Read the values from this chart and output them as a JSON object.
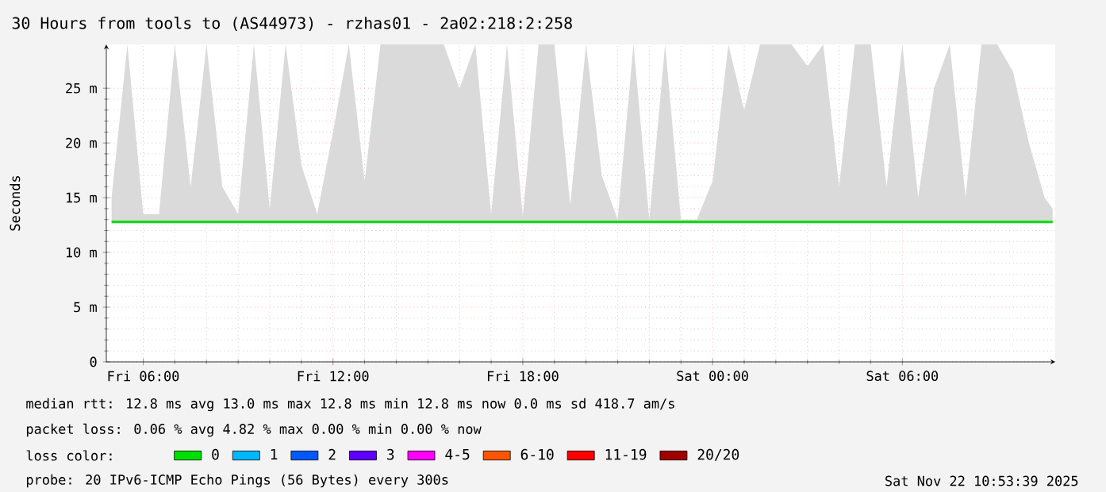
{
  "chart_data": {
    "type": "line",
    "title": "30 Hours from tools to (AS44973) - rzhas01 - 2a02:218:2:258",
    "ylabel": "Seconds",
    "legend_title": "loss color:",
    "legend": "bottom",
    "grid": true,
    "annotations": [
      "median rtt:  12.8 ms avg  13.0 ms max  12.8 ms min  12.8 ms now  0.0 ms sd  418.7   am/s",
      "packet loss: 0.06 % avg  4.82 % max  0.00 % min  0.00 % now",
      "probe:       20 IPv6-ICMP Echo Pings (56 Bytes) every 300s",
      "Sat Nov 22 10:53:39 2025"
    ],
    "xlim": [
      "2025-11-21T04:50",
      "2025-11-22T10:50"
    ],
    "xticks": [
      {
        "value": "2025-11-21T06:00",
        "label": "Fri 06:00"
      },
      {
        "value": "2025-11-21T12:00",
        "label": "Fri 12:00"
      },
      {
        "value": "2025-11-21T18:00",
        "label": "Fri 18:00"
      },
      {
        "value": "2025-11-22T00:00",
        "label": "Sat 00:00"
      },
      {
        "value": "2025-11-22T06:00",
        "label": "Sat 06:00"
      }
    ],
    "ylim": [
      0,
      29
    ],
    "yticks": [
      {
        "value": 0,
        "label": "0"
      },
      {
        "value": 5,
        "label": "5 m"
      },
      {
        "value": 10,
        "label": "10 m"
      },
      {
        "value": 15,
        "label": "15 m"
      },
      {
        "value": 20,
        "label": "20 m"
      },
      {
        "value": 25,
        "label": "25 m"
      }
    ],
    "series": [
      {
        "name": "0",
        "color": "#00e000",
        "x": [
          "2025-11-21T05:00",
          "2025-11-21T05:30",
          "2025-11-21T06:00",
          "2025-11-21T06:30",
          "2025-11-21T07:00",
          "2025-11-21T07:30",
          "2025-11-21T08:00",
          "2025-11-21T08:30",
          "2025-11-21T09:00",
          "2025-11-21T09:30",
          "2025-11-21T10:00",
          "2025-11-21T10:30",
          "2025-11-21T11:00",
          "2025-11-21T11:30",
          "2025-11-21T12:00",
          "2025-11-21T12:30",
          "2025-11-21T13:00",
          "2025-11-21T13:30",
          "2025-11-21T14:00",
          "2025-11-21T14:30",
          "2025-11-21T15:00",
          "2025-11-21T15:30",
          "2025-11-21T16:00",
          "2025-11-21T16:30",
          "2025-11-21T17:00",
          "2025-11-21T17:30",
          "2025-11-21T18:00",
          "2025-11-21T18:30",
          "2025-11-21T19:00",
          "2025-11-21T19:30",
          "2025-11-21T20:00",
          "2025-11-21T20:30",
          "2025-11-21T21:00",
          "2025-11-21T21:30",
          "2025-11-21T22:00",
          "2025-11-21T22:30",
          "2025-11-21T23:00",
          "2025-11-21T23:30",
          "2025-11-22T00:00",
          "2025-11-22T00:30",
          "2025-11-22T01:00",
          "2025-11-22T01:30",
          "2025-11-22T02:00",
          "2025-11-22T02:30",
          "2025-11-22T03:00",
          "2025-11-22T03:30",
          "2025-11-22T04:00",
          "2025-11-22T04:30",
          "2025-11-22T05:00",
          "2025-11-22T05:30",
          "2025-11-22T06:00",
          "2025-11-22T06:30",
          "2025-11-22T07:00",
          "2025-11-22T07:30",
          "2025-11-22T08:00",
          "2025-11-22T08:30",
          "2025-11-22T09:00",
          "2025-11-22T09:30",
          "2025-11-22T10:00",
          "2025-11-22T10:30",
          "2025-11-22T10:45"
        ],
        "values": [
          12.8,
          12.8,
          12.8,
          12.8,
          12.8,
          12.8,
          12.8,
          12.8,
          12.8,
          12.8,
          12.8,
          12.8,
          12.8,
          12.8,
          12.8,
          12.8,
          12.8,
          12.8,
          12.8,
          12.8,
          12.8,
          12.8,
          12.8,
          12.8,
          12.8,
          12.8,
          12.8,
          12.8,
          12.8,
          12.8,
          12.8,
          12.8,
          12.8,
          12.8,
          12.8,
          12.8,
          12.8,
          12.8,
          12.8,
          12.8,
          12.8,
          12.8,
          12.8,
          12.8,
          12.8,
          12.8,
          12.8,
          12.8,
          12.8,
          12.8,
          12.8,
          12.8,
          12.8,
          12.8,
          12.8,
          12.8,
          12.8,
          12.8,
          12.8,
          12.8,
          12.8
        ],
        "lower": [
          12.6,
          12.6,
          12.6,
          12.6,
          12.6,
          12.6,
          12.6,
          12.6,
          12.6,
          12.6,
          12.6,
          12.6,
          12.6,
          12.6,
          12.6,
          12.6,
          12.6,
          12.6,
          12.6,
          12.6,
          12.6,
          12.6,
          12.6,
          12.6,
          12.6,
          12.6,
          12.6,
          12.6,
          12.6,
          12.6,
          12.6,
          12.6,
          12.6,
          12.6,
          12.6,
          12.6,
          12.6,
          12.6,
          12.6,
          12.6,
          12.6,
          12.6,
          12.6,
          12.6,
          12.6,
          12.6,
          12.6,
          12.6,
          12.6,
          12.6,
          12.6,
          12.6,
          12.6,
          12.6,
          12.6,
          12.6,
          12.6,
          12.6,
          12.6,
          12.6,
          12.6
        ],
        "upper": [
          15,
          29,
          13.5,
          13.5,
          29,
          16,
          29,
          16,
          13.5,
          29,
          14,
          29,
          18,
          13.5,
          21,
          29,
          16.5,
          29,
          29,
          29,
          29,
          29,
          25,
          29,
          13.5,
          29,
          13.3,
          29,
          29,
          14.3,
          29,
          17,
          13,
          29,
          13,
          29,
          13,
          13,
          16.5,
          29,
          23,
          29,
          29,
          29,
          27,
          29,
          16,
          29,
          29,
          16,
          29,
          15,
          25,
          29,
          15,
          29,
          29,
          26.5,
          20,
          15,
          14
        ]
      },
      {
        "name": "1",
        "color": "#00b8ff",
        "values": [
          null,
          null,
          null,
          null,
          null,
          null,
          null,
          null,
          null,
          null,
          null,
          null,
          null,
          null,
          null,
          null,
          null,
          null,
          null,
          null,
          null,
          null,
          null,
          null,
          null,
          null,
          null,
          null,
          null,
          null,
          null,
          null,
          null,
          null,
          null,
          null,
          null,
          null,
          null,
          null,
          null,
          null,
          null,
          null,
          null,
          null,
          null,
          null,
          null,
          null,
          null,
          null,
          null,
          null,
          null,
          null,
          null,
          null,
          null,
          null
        ]
      },
      {
        "name": "2",
        "color": "#0059ff",
        "values": [
          null,
          null,
          null,
          null,
          null,
          null,
          null,
          null,
          null,
          null,
          null,
          null,
          null,
          null,
          null,
          null,
          null,
          null,
          null,
          null,
          null,
          null,
          null,
          null,
          null,
          null,
          null,
          null,
          null,
          null,
          null,
          null,
          null,
          null,
          null,
          null,
          null,
          null,
          null,
          null,
          null,
          null,
          null,
          null,
          null,
          null,
          null,
          null,
          null,
          null,
          null,
          null,
          null,
          null,
          null,
          null,
          null,
          null,
          null,
          null
        ]
      },
      {
        "name": "3",
        "color": "#5e00ff",
        "values": [
          null,
          null,
          null,
          null,
          null,
          null,
          null,
          null,
          null,
          null,
          null,
          null,
          null,
          null,
          null,
          null,
          null,
          null,
          null,
          null,
          null,
          null,
          null,
          null,
          null,
          null,
          null,
          null,
          null,
          null,
          null,
          null,
          null,
          null,
          null,
          null,
          null,
          null,
          null,
          null,
          null,
          null,
          null,
          null,
          null,
          null,
          null,
          null,
          null,
          null,
          null,
          null,
          null,
          null,
          null,
          null,
          null,
          null,
          null,
          null
        ]
      },
      {
        "name": "4-5",
        "color": "#ff00ff",
        "values": [
          null,
          null,
          null,
          null,
          null,
          null,
          null,
          null,
          null,
          null,
          null,
          null,
          null,
          null,
          null,
          null,
          null,
          null,
          null,
          null,
          null,
          null,
          null,
          null,
          null,
          null,
          null,
          null,
          null,
          null,
          null,
          null,
          null,
          null,
          null,
          null,
          null,
          null,
          null,
          null,
          null,
          null,
          null,
          null,
          null,
          null,
          null,
          null,
          null,
          null,
          null,
          null,
          null,
          null,
          null,
          null,
          null,
          null,
          null,
          null
        ]
      },
      {
        "name": "6-10",
        "color": "#ff5500",
        "values": [
          null,
          null,
          null,
          null,
          null,
          null,
          null,
          null,
          null,
          null,
          null,
          null,
          null,
          null,
          null,
          null,
          null,
          null,
          null,
          null,
          null,
          null,
          null,
          null,
          null,
          null,
          null,
          null,
          null,
          null,
          null,
          null,
          null,
          null,
          null,
          null,
          null,
          null,
          null,
          null,
          null,
          null,
          null,
          null,
          null,
          null,
          null,
          null,
          null,
          null,
          null,
          null,
          null,
          null,
          null,
          null,
          null,
          null,
          null,
          null
        ]
      },
      {
        "name": "11-19",
        "color": "#ff0000",
        "values": [
          null,
          null,
          null,
          null,
          null,
          null,
          null,
          null,
          null,
          null,
          null,
          null,
          null,
          null,
          null,
          null,
          null,
          null,
          null,
          null,
          null,
          null,
          null,
          null,
          null,
          null,
          null,
          null,
          null,
          null,
          null,
          null,
          null,
          null,
          null,
          null,
          null,
          null,
          null,
          null,
          null,
          null,
          null,
          null,
          null,
          null,
          null,
          null,
          null,
          null,
          null,
          null,
          null,
          null,
          null,
          null,
          null,
          null,
          null,
          null
        ]
      },
      {
        "name": "20/20",
        "color": "#a10000",
        "values": [
          null,
          null,
          null,
          null,
          null,
          null,
          null,
          null,
          null,
          null,
          null,
          null,
          null,
          null,
          null,
          null,
          null,
          null,
          null,
          null,
          null,
          null,
          null,
          null,
          null,
          null,
          null,
          null,
          null,
          null,
          null,
          null,
          null,
          null,
          null,
          null,
          null,
          null,
          null,
          null,
          null,
          null,
          null,
          null,
          null,
          null,
          null,
          null,
          null,
          null,
          null,
          null,
          null,
          null,
          null,
          null,
          null,
          null,
          null,
          null
        ]
      }
    ]
  }
}
